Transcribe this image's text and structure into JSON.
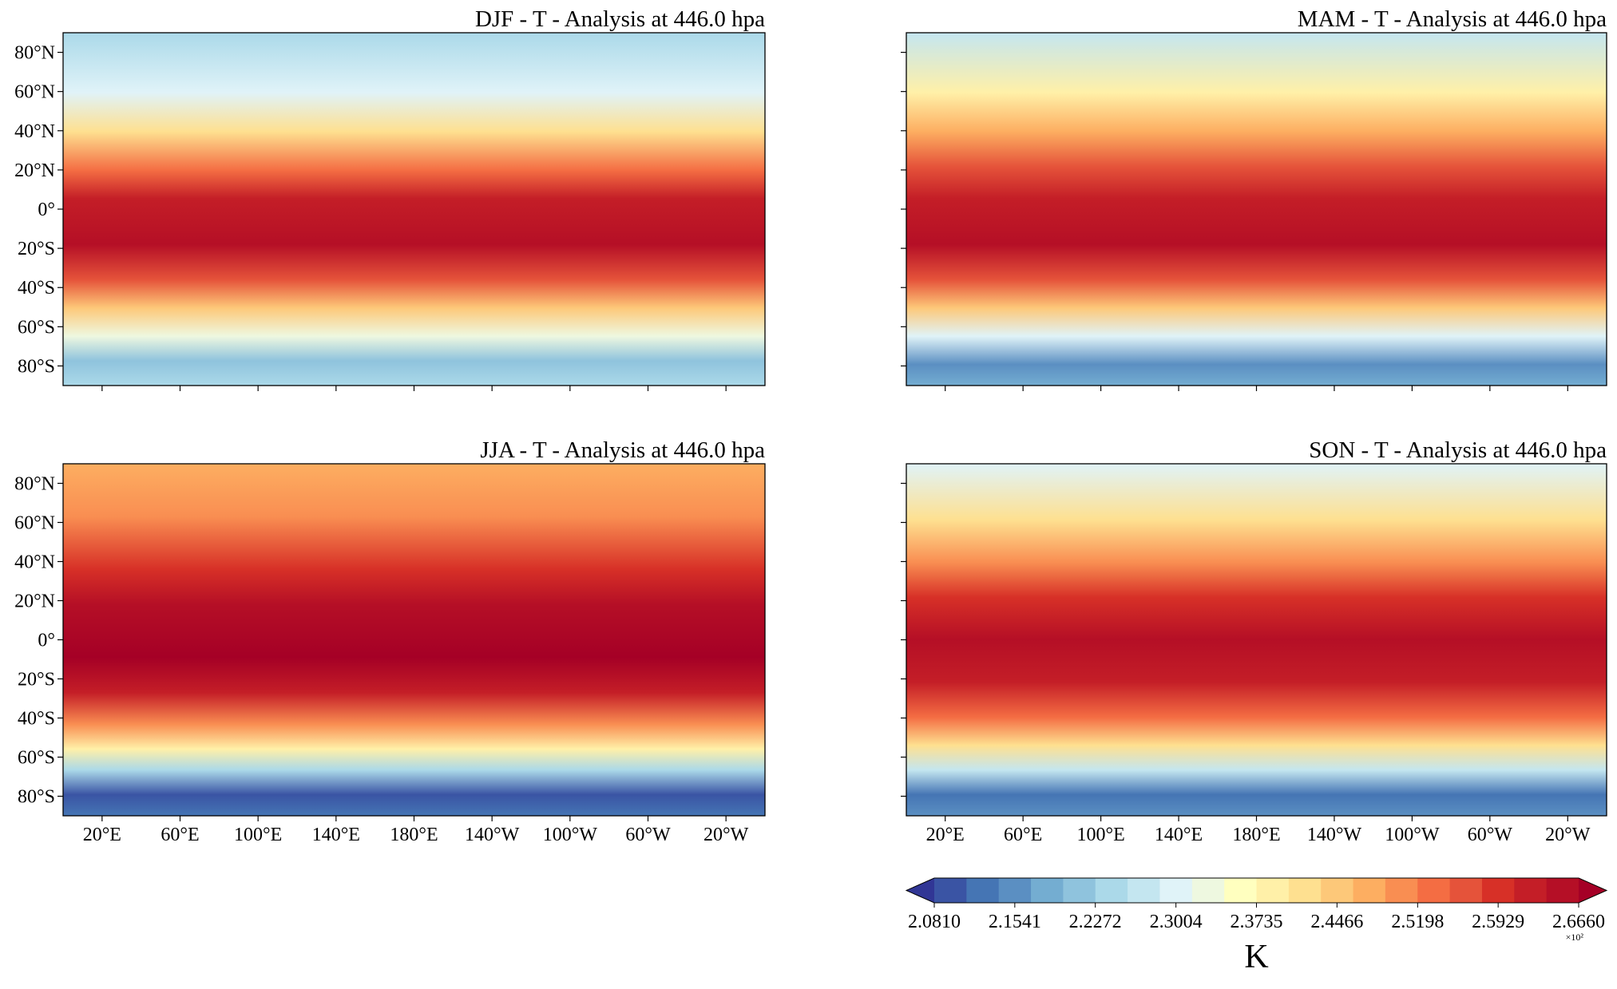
{
  "panels": [
    {
      "title": "DJF - T - Analysis at 446.0 hpa"
    },
    {
      "title": "MAM - T - Analysis at 446.0 hpa"
    },
    {
      "title": "JJA - T - Analysis at 446.0 hpa"
    },
    {
      "title": "SON - T - Analysis at 446.0 hpa"
    }
  ],
  "xlim": [
    0,
    360
  ],
  "ylim": [
    -90,
    90
  ],
  "lat_ticks": [
    {
      "value": 80,
      "label": "80°N"
    },
    {
      "value": 60,
      "label": "60°N"
    },
    {
      "value": 40,
      "label": "40°N"
    },
    {
      "value": 20,
      "label": "20°N"
    },
    {
      "value": 0,
      "label": "0°"
    },
    {
      "value": -20,
      "label": "20°S"
    },
    {
      "value": -40,
      "label": "40°S"
    },
    {
      "value": -60,
      "label": "60°S"
    },
    {
      "value": -80,
      "label": "80°S"
    }
  ],
  "lon_ticks": [
    {
      "value": 20,
      "label": "20°E"
    },
    {
      "value": 60,
      "label": "60°E"
    },
    {
      "value": 100,
      "label": "100°E"
    },
    {
      "value": 140,
      "label": "140°E"
    },
    {
      "value": 180,
      "label": "180°E"
    },
    {
      "value": 220,
      "label": "140°W"
    },
    {
      "value": 260,
      "label": "100°W"
    },
    {
      "value": 300,
      "label": "60°W"
    },
    {
      "value": 340,
      "label": "20°W"
    }
  ],
  "colorbar": {
    "lim": [
      2.081,
      2.666
    ],
    "ticks": [
      {
        "value": 2.081,
        "label": "2.0810"
      },
      {
        "value": 2.1541,
        "label": "2.1541"
      },
      {
        "value": 2.2272,
        "label": "2.2272"
      },
      {
        "value": 2.3004,
        "label": "2.3004"
      },
      {
        "value": 2.3735,
        "label": "2.3735"
      },
      {
        "value": 2.4466,
        "label": "2.4466"
      },
      {
        "value": 2.5198,
        "label": "2.5198"
      },
      {
        "value": 2.5929,
        "label": "2.5929"
      },
      {
        "value": 2.666,
        "label": "2.6660"
      }
    ],
    "label": "K",
    "multiplier": "×10²",
    "colors": [
      "#313695",
      "#3a54a4",
      "#4575b4",
      "#5b8fc2",
      "#74add1",
      "#8fc3dd",
      "#abd9e9",
      "#c4e6f0",
      "#e0f3f8",
      "#eef8e0",
      "#ffffbf",
      "#fff0a8",
      "#fee090",
      "#fdc879",
      "#fdae61",
      "#f98e52",
      "#f46d43",
      "#e5533a",
      "#d73027",
      "#c41e27",
      "#b50f26",
      "#a50026"
    ]
  }
}
